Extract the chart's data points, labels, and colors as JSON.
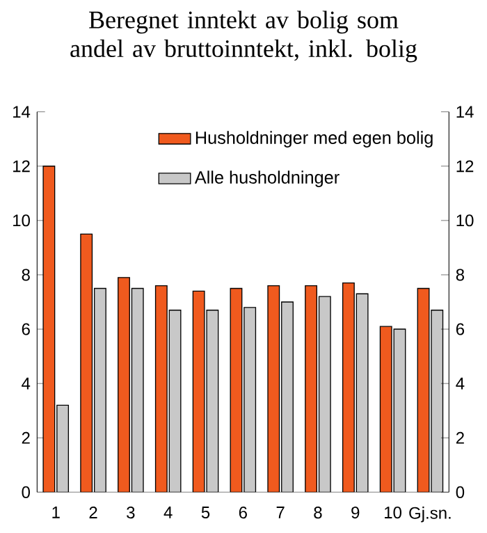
{
  "chart_data": {
    "type": "bar",
    "title": "Beregnet inntekt av bolig som andel av bruttoinntekt, inkl. bolig",
    "categories": [
      "1",
      "2",
      "3",
      "4",
      "5",
      "6",
      "7",
      "8",
      "9",
      "10",
      "Gj.sn."
    ],
    "series": [
      {
        "name": "Husholdninger med egen bolig",
        "color": "#f05a1e",
        "values": [
          12,
          9.5,
          7.9,
          7.6,
          7.4,
          7.5,
          7.6,
          7.6,
          7.7,
          6.1,
          7.5
        ]
      },
      {
        "name": "Alle husholdninger",
        "color": "#c8c8c8",
        "values": [
          3.2,
          7.5,
          7.5,
          6.7,
          6.7,
          6.8,
          7.0,
          7.2,
          7.3,
          6.0,
          6.7
        ]
      }
    ],
    "ylim": [
      0,
      14
    ],
    "yticks": [
      0,
      2,
      4,
      6,
      8,
      10,
      12,
      14
    ],
    "y2lim": [
      0,
      14
    ],
    "y2ticks": [
      0,
      2,
      4,
      6,
      8,
      10,
      12,
      14
    ],
    "legend": "top",
    "grid": false
  }
}
